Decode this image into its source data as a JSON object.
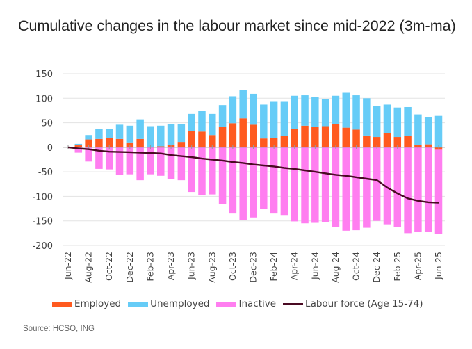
{
  "chart_data": {
    "type": "bar",
    "subtype": "stacked-bar-with-line",
    "title": "Cumulative changes in the labour market since mid-2022 (3m-ma)",
    "xlabel": "",
    "ylabel": "",
    "ylim": [
      -200,
      150
    ],
    "yticks": [
      150,
      100,
      50,
      0,
      -50,
      -100,
      -150,
      -200
    ],
    "grid": true,
    "legend_position": "bottom",
    "categories": [
      "Jun-22",
      "Jul-22",
      "Aug-22",
      "Sep-22",
      "Oct-22",
      "Nov-22",
      "Dec-22",
      "Jan-23",
      "Feb-23",
      "Mar-23",
      "Apr-23",
      "May-23",
      "Jun-23",
      "Jul-23",
      "Aug-23",
      "Sep-23",
      "Oct-23",
      "Nov-23",
      "Dec-23",
      "Jan-24",
      "Feb-24",
      "Mar-24",
      "Apr-24",
      "May-24",
      "Jun-24",
      "Jul-24",
      "Aug-24",
      "Sep-24",
      "Oct-24",
      "Nov-24",
      "Dec-24",
      "Jan-25",
      "Feb-25",
      "Mar-25",
      "Apr-25",
      "May-25",
      "Jun-25"
    ],
    "xtick_labels": [
      "Jun-22",
      "Aug-22",
      "Oct-22",
      "Dec-22",
      "Feb-23",
      "Apr-23",
      "Jun-23",
      "Aug-23",
      "Oct-23",
      "Dec-23",
      "Feb-24",
      "Apr-24",
      "Jun-24",
      "Aug-24",
      "Oct-24",
      "Dec-24",
      "Feb-25",
      "Apr-25",
      "Jun-25"
    ],
    "series": [
      {
        "name": "Employed",
        "kind": "bar",
        "color": "#ff5a1f",
        "values": [
          0,
          4,
          16,
          17,
          19,
          17,
          10,
          17,
          0,
          2,
          5,
          11,
          33,
          32,
          25,
          42,
          49,
          59,
          46,
          18,
          19,
          23,
          37,
          44,
          41,
          43,
          47,
          40,
          36,
          24,
          21,
          29,
          21,
          23,
          5,
          6,
          -5
        ]
      },
      {
        "name": "Unemployed",
        "kind": "bar",
        "color": "#66ccf7",
        "values": [
          0,
          3,
          9,
          21,
          18,
          29,
          34,
          40,
          43,
          42,
          42,
          36,
          35,
          42,
          43,
          44,
          55,
          57,
          63,
          69,
          75,
          71,
          68,
          62,
          61,
          55,
          58,
          71,
          70,
          76,
          63,
          58,
          60,
          59,
          62,
          56,
          64
        ]
      },
      {
        "name": "Inactive",
        "kind": "bar",
        "color": "#ff7ef0",
        "values": [
          0,
          -11,
          -29,
          -44,
          -45,
          -56,
          -55,
          -67,
          -55,
          -58,
          -65,
          -67,
          -91,
          -98,
          -96,
          -115,
          -135,
          -148,
          -143,
          -126,
          -135,
          -138,
          -151,
          -155,
          -154,
          -153,
          -162,
          -170,
          -169,
          -164,
          -150,
          -157,
          -162,
          -175,
          -173,
          -173,
          -172
        ]
      },
      {
        "name": "Labour force (Age 15-74)",
        "kind": "line",
        "color": "#4a0a23",
        "values": [
          0,
          -2.5,
          -4,
          -7,
          -9,
          -9.5,
          -10,
          -11,
          -11.5,
          -12.5,
          -16,
          -18,
          -20,
          -23,
          -25,
          -27,
          -30,
          -32,
          -35,
          -37,
          -39,
          -42,
          -44,
          -47,
          -50,
          -53,
          -56,
          -58,
          -61,
          -64,
          -67,
          -82,
          -94,
          -104,
          -109,
          -112,
          -113
        ]
      }
    ]
  },
  "legend": {
    "employed": "Employed",
    "unemployed": "Unemployed",
    "inactive": "Inactive",
    "labour_force": "Labour force (Age 15-74)"
  },
  "colors": {
    "employed": "#ff5a1f",
    "unemployed": "#66ccf7",
    "inactive": "#ff7ef0",
    "labour_force": "#4a0a23"
  },
  "source": "Source: HCSO, ING"
}
